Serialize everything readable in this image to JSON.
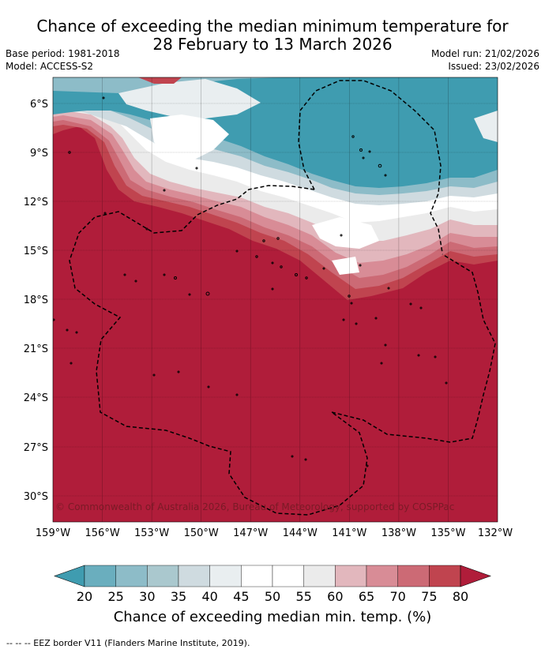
{
  "title_line1": "Chance of exceeding the median minimum temperature for",
  "title_line2": "28 February to 13 March 2026",
  "base_period": "Base period: 1981-2018",
  "model": "Model: ACCESS-S2",
  "model_run": "Model run: 21/02/2026",
  "issued": "Issued: 23/02/2026",
  "copyright": "© Commonwealth of Australia 2026, Bureau of Meteorology, supported by COSPPac",
  "lat_labels": [
    "6°S",
    "9°S",
    "12°S",
    "15°S",
    "18°S",
    "21°S",
    "24°S",
    "27°S",
    "30°S"
  ],
  "lon_labels": [
    "159°W",
    "156°W",
    "153°W",
    "150°W",
    "147°W",
    "144°W",
    "141°W",
    "138°W",
    "135°W",
    "132°W"
  ],
  "colorbar": {
    "ticks": [
      "20",
      "25",
      "30",
      "35",
      "40",
      "45",
      "50",
      "55",
      "60",
      "65",
      "70",
      "75",
      "80"
    ],
    "colors": [
      "#3f9cb0",
      "#6aaebe",
      "#8dbcc8",
      "#aac8ce",
      "#cfdbe0",
      "#e9eef0",
      "#ffffff",
      "#ffffff",
      "#ebebeb",
      "#e2b7bd",
      "#d88c96",
      "#cc6a75",
      "#c0444f",
      "#b01d3a"
    ],
    "title": "Chance of exceeding median min. temp. (%)"
  },
  "footnote": "--  --  -- EEZ border V11 (Flanders Marine Institute, 2019)."
}
